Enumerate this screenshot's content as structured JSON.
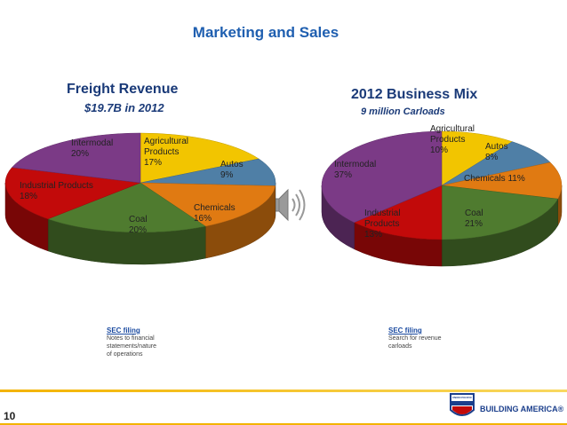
{
  "title": "Marketing and Sales",
  "chart_data": [
    {
      "type": "pie",
      "title": "Freight Revenue",
      "subtitle": "$19.7B in 2012",
      "categories": [
        "Agricultural Products",
        "Autos",
        "Chemicals",
        "Coal",
        "Industrial Products",
        "Intermodal"
      ],
      "values": [
        17,
        9,
        16,
        20,
        18,
        20
      ],
      "value_labels": [
        "17%",
        "9%",
        "16%",
        "20%",
        "18%",
        "20%"
      ],
      "colors": [
        "#f2c500",
        "#4f7fa6",
        "#e07a12",
        "#4f7b2f",
        "#c20a0a",
        "#7b3a86"
      ]
    },
    {
      "type": "pie",
      "title": "2012 Business Mix",
      "subtitle": "9 million Carloads",
      "categories": [
        "Agricultural Products",
        "Autos",
        "Chemicals",
        "Coal",
        "Industrial Products",
        "Intermodal"
      ],
      "values": [
        10,
        8,
        11,
        21,
        13,
        37
      ],
      "value_labels": [
        "10%",
        "8%",
        "11%",
        "21%",
        "13%",
        "37%"
      ],
      "colors": [
        "#f2c500",
        "#4f7fa6",
        "#e07a12",
        "#4f7b2f",
        "#c20a0a",
        "#7b3a86"
      ]
    }
  ],
  "notes": [
    {
      "link": "SEC filing",
      "lines": [
        "Notes to financial",
        "statements/nature",
        "of operations"
      ]
    },
    {
      "link": "SEC filing",
      "lines": [
        "Search for revenue",
        "carloads"
      ]
    }
  ],
  "footer": {
    "page": "10",
    "logo": "UNION PACIFIC",
    "brand": "BUILDING AMERICA®"
  }
}
